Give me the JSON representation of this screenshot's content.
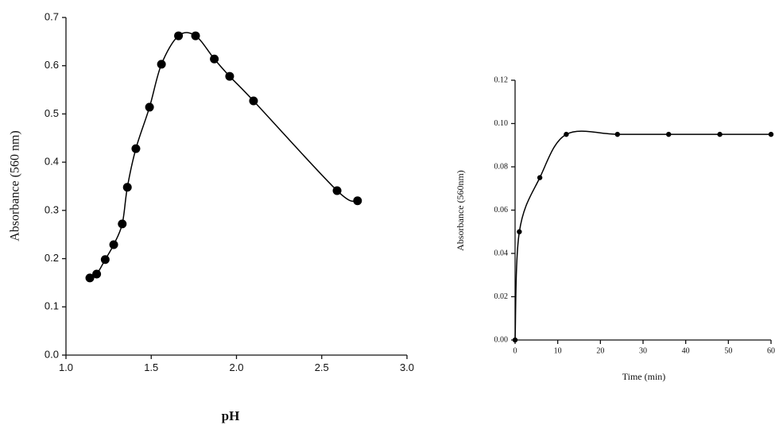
{
  "chart_data": [
    {
      "type": "line",
      "x_label": "pH",
      "y_label": "Absorbance (560 nm)",
      "xlim": [
        1,
        3
      ],
      "ylim": [
        0,
        0.7
      ],
      "xticks": [
        {
          "value": 1,
          "label": "1.0"
        },
        1.5,
        {
          "value": 2,
          "label": "2.0"
        },
        2.5,
        {
          "value": 3,
          "label": "3.0"
        }
      ],
      "yticks": [
        {
          "value": 0,
          "label": "0.0"
        },
        0.1,
        0.2,
        0.3,
        0.4,
        0.5,
        0.6,
        0.7
      ],
      "series": [
        {
          "color": "#000000",
          "x": [
            1.14,
            1.18,
            1.23,
            1.28,
            1.33,
            1.36,
            1.41,
            1.49,
            1.56,
            1.66,
            1.76,
            1.87,
            1.96,
            2.1,
            2.59,
            2.71
          ],
          "values": [
            0.16,
            0.168,
            0.198,
            0.229,
            0.272,
            0.348,
            0.428,
            0.514,
            0.603,
            0.662,
            0.662,
            0.614,
            0.578,
            0.527,
            0.341,
            0.32
          ]
        }
      ]
    },
    {
      "type": "line",
      "x_label": "Time (min)",
      "y_label": "Absorbance (560nm)",
      "xlim": [
        0,
        60
      ],
      "ylim": [
        0,
        0.12
      ],
      "xticks": [
        0,
        10,
        20,
        30,
        40,
        50,
        60
      ],
      "yticks": [
        {
          "value": 0,
          "label": "0.00"
        },
        {
          "value": 0.02,
          "label": "0.02"
        },
        {
          "value": 0.04,
          "label": "0.04"
        },
        {
          "value": 0.06,
          "label": "0.06"
        },
        {
          "value": 0.08,
          "label": "0.08"
        },
        {
          "value": 0.1,
          "label": "0.10"
        },
        {
          "value": 0.12,
          "label": "0.12"
        }
      ],
      "series": [
        {
          "color": "#000000",
          "x": [
            0,
            1,
            5.8,
            12,
            24,
            36,
            48,
            60
          ],
          "values": [
            0,
            0.05,
            0.075,
            0.095,
            0.095,
            0.095,
            0.095,
            0.095
          ]
        }
      ]
    }
  ]
}
